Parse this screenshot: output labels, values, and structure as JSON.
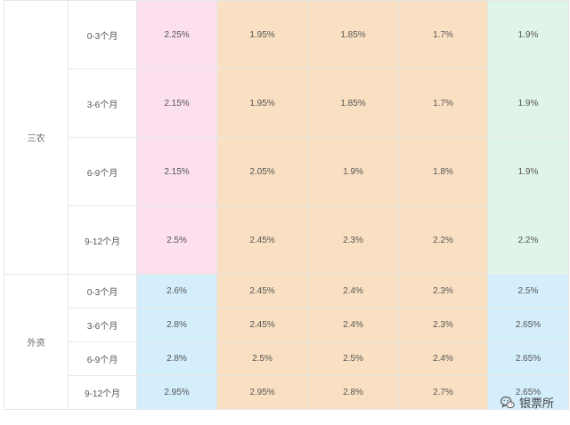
{
  "groups": [
    {
      "name": "三农",
      "rows": [
        {
          "term": "0-3个月",
          "values": [
            "2.25%",
            "1.95%",
            "1.85%",
            "1.7%",
            "1.9%"
          ]
        },
        {
          "term": "3-6个月",
          "values": [
            "2.15%",
            "1.95%",
            "1.85%",
            "1.7%",
            "1.9%"
          ]
        },
        {
          "term": "6-9个月",
          "values": [
            "2.15%",
            "2.05%",
            "1.9%",
            "1.8%",
            "1.9%"
          ]
        },
        {
          "term": "9-12个月",
          "values": [
            "2.5%",
            "2.45%",
            "2.3%",
            "2.2%",
            "2.2%"
          ]
        }
      ]
    },
    {
      "name": "外资",
      "rows": [
        {
          "term": "0-3个月",
          "values": [
            "2.6%",
            "2.45%",
            "2.4%",
            "2.3%",
            "2.5%"
          ]
        },
        {
          "term": "3-6个月",
          "values": [
            "2.8%",
            "2.45%",
            "2.4%",
            "2.3%",
            "2.65%"
          ]
        },
        {
          "term": "6-9个月",
          "values": [
            "2.8%",
            "2.5%",
            "2.5%",
            "2.4%",
            "2.65%"
          ]
        },
        {
          "term": "9-12个月",
          "values": [
            "2.95%",
            "2.95%",
            "2.8%",
            "2.7%",
            "2.65%"
          ]
        }
      ]
    }
  ],
  "colors": {
    "pink": "#fde0ee",
    "orange": "#fae0c2",
    "green": "#e0f5e9",
    "blue": "#d4eefb"
  },
  "watermark": {
    "text": "银票所",
    "icon": "wechat-icon"
  }
}
